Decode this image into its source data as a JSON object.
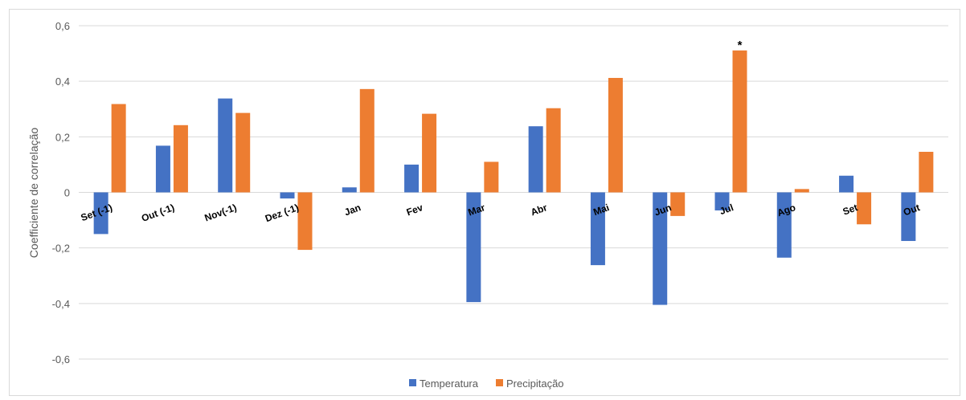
{
  "chart_data": {
    "type": "bar",
    "title": "",
    "xlabel": "",
    "ylabel": "Coefficiente de correlação",
    "ylim": [
      -0.6,
      0.6
    ],
    "yticks": [
      "0,6",
      "0,4",
      "0,2",
      "0",
      "-0,2",
      "-0,4",
      "-0,6"
    ],
    "ytick_values": [
      0.6,
      0.4,
      0.2,
      0,
      -0.2,
      -0.4,
      -0.6
    ],
    "grid": true,
    "legend_position": "bottom",
    "categories": [
      "Set (-1)",
      "Out (-1)",
      "Nov(-1)",
      "Dez (-1)",
      "Jan",
      "Fev",
      "Mar",
      "Abr",
      "Mai",
      "Jun",
      "Jul",
      "Ago",
      "Set",
      "Out"
    ],
    "series": [
      {
        "name": "Temperatura",
        "color": "#4472c4",
        "values": [
          -0.15,
          0.168,
          0.338,
          -0.022,
          0.018,
          0.1,
          -0.395,
          0.238,
          -0.262,
          -0.405,
          -0.065,
          -0.235,
          0.06,
          -0.175
        ]
      },
      {
        "name": "Precipitação",
        "color": "#ed7d31",
        "values": [
          0.318,
          0.242,
          0.286,
          -0.207,
          0.372,
          0.283,
          0.11,
          0.303,
          0.412,
          -0.085,
          0.511,
          0.012,
          -0.115,
          0.146
        ]
      }
    ],
    "annotations": [
      {
        "text": "*",
        "category": "Jul",
        "series": "Precipitação"
      }
    ]
  }
}
